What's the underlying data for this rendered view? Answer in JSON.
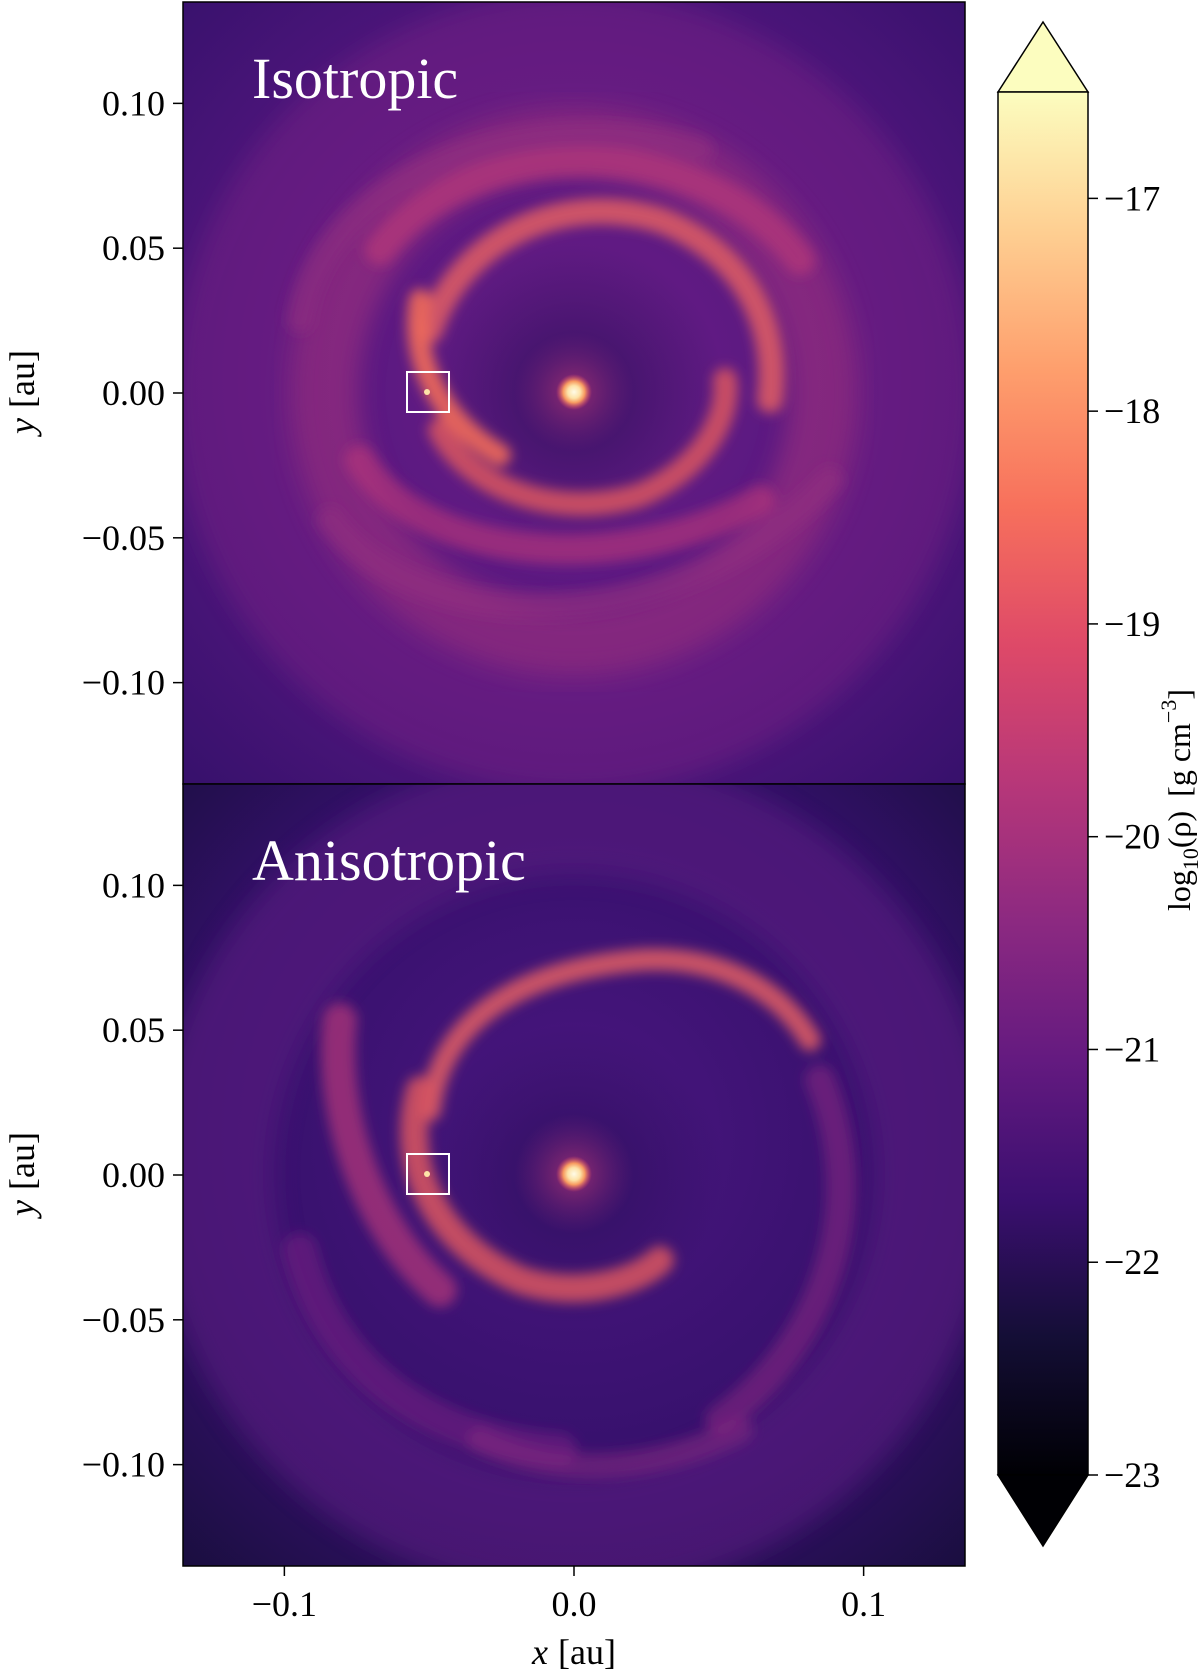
{
  "chart_data": [
    {
      "type": "heatmap",
      "panel_title": "Isotropic",
      "ylabel_var": "y",
      "ylabel_unit": "[au]",
      "xlim": [
        -0.135,
        0.135
      ],
      "ylim": [
        -0.135,
        0.135
      ],
      "yticks": [
        0.1,
        0.05,
        0.0,
        -0.05,
        -0.1
      ],
      "ytick_labels": [
        "0.10",
        "0.05",
        "0.00",
        "−0.05",
        "−0.10"
      ],
      "central_source": [
        0.0,
        0.0
      ],
      "highlight_box_center": [
        -0.05,
        0.0
      ],
      "highlight_box_size": 0.014,
      "description_colors": {
        "background": "#4a1680",
        "ring": "#b73779",
        "bright_arm": "#f06a5a"
      }
    },
    {
      "type": "heatmap",
      "panel_title": "Anisotropic",
      "ylabel_var": "y",
      "ylabel_unit": "[au]",
      "xlabel_var": "x",
      "xlabel_unit": "[au]",
      "xlim": [
        -0.135,
        0.135
      ],
      "ylim": [
        -0.135,
        0.135
      ],
      "xticks": [
        -0.1,
        0.0,
        0.1
      ],
      "xtick_labels": [
        "−0.1",
        "0.0",
        "0.1"
      ],
      "yticks": [
        0.1,
        0.05,
        0.0,
        -0.05,
        -0.1
      ],
      "ytick_labels": [
        "0.10",
        "0.05",
        "0.00",
        "−0.05",
        "−0.10"
      ],
      "central_source": [
        0.0,
        0.0
      ],
      "highlight_box_center": [
        -0.05,
        0.0
      ],
      "highlight_box_size": 0.014,
      "description_colors": {
        "background": "#2c115f",
        "ring": "#8c2981",
        "bright_arm": "#f06a5a"
      }
    }
  ],
  "colorbar": {
    "colormap": "magma",
    "range": [
      -23,
      -16.5
    ],
    "extend": "both",
    "ticks": [
      -17,
      -18,
      -19,
      -20,
      -21,
      -22,
      -23
    ],
    "tick_labels": [
      "−17",
      "−18",
      "−19",
      "−20",
      "−21",
      "−22",
      "−23"
    ],
    "label_main": "log",
    "label_sub": "10",
    "label_arg": "(ρ)",
    "label_units_pre": "[g cm",
    "label_units_exp": "−3",
    "label_units_post": "]"
  }
}
